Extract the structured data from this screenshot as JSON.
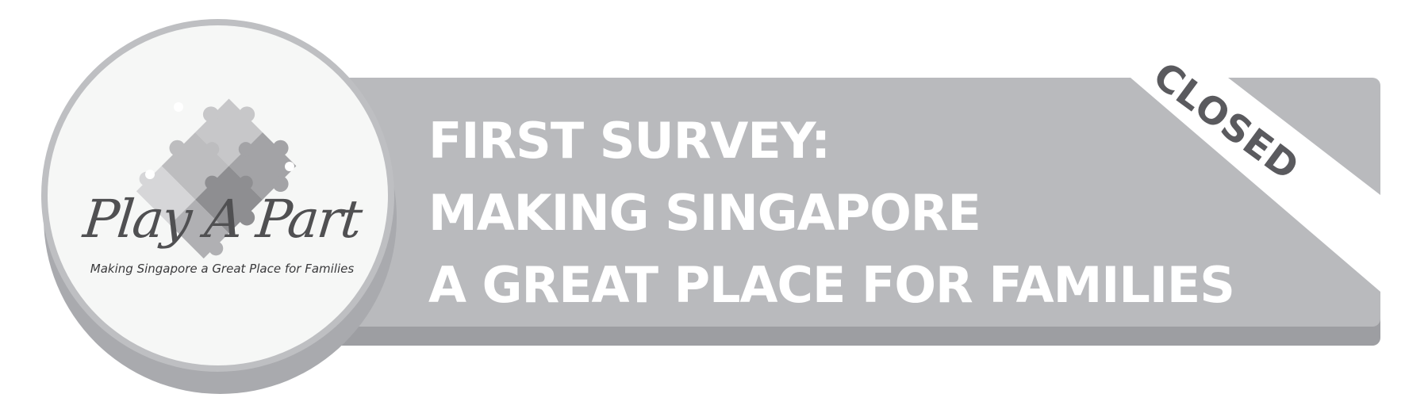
{
  "logo": {
    "name": "Play A Part",
    "tagline": "Making Singapore a Great Place for Families",
    "icon": "puzzle-pieces-icon"
  },
  "headline": {
    "line1": "FIRST SURVEY:",
    "line2": "MAKING SINGAPORE",
    "line3": "A GREAT PLACE FOR FAMILIES"
  },
  "status": {
    "label": "CLOSED"
  },
  "colors": {
    "band": "#b9babd",
    "band_shadow": "#9d9ea2",
    "ribbon": "#ffffff",
    "closed_text": "#5a5a5e",
    "headline_text": "#ffffff",
    "logo_text": "#505052"
  }
}
